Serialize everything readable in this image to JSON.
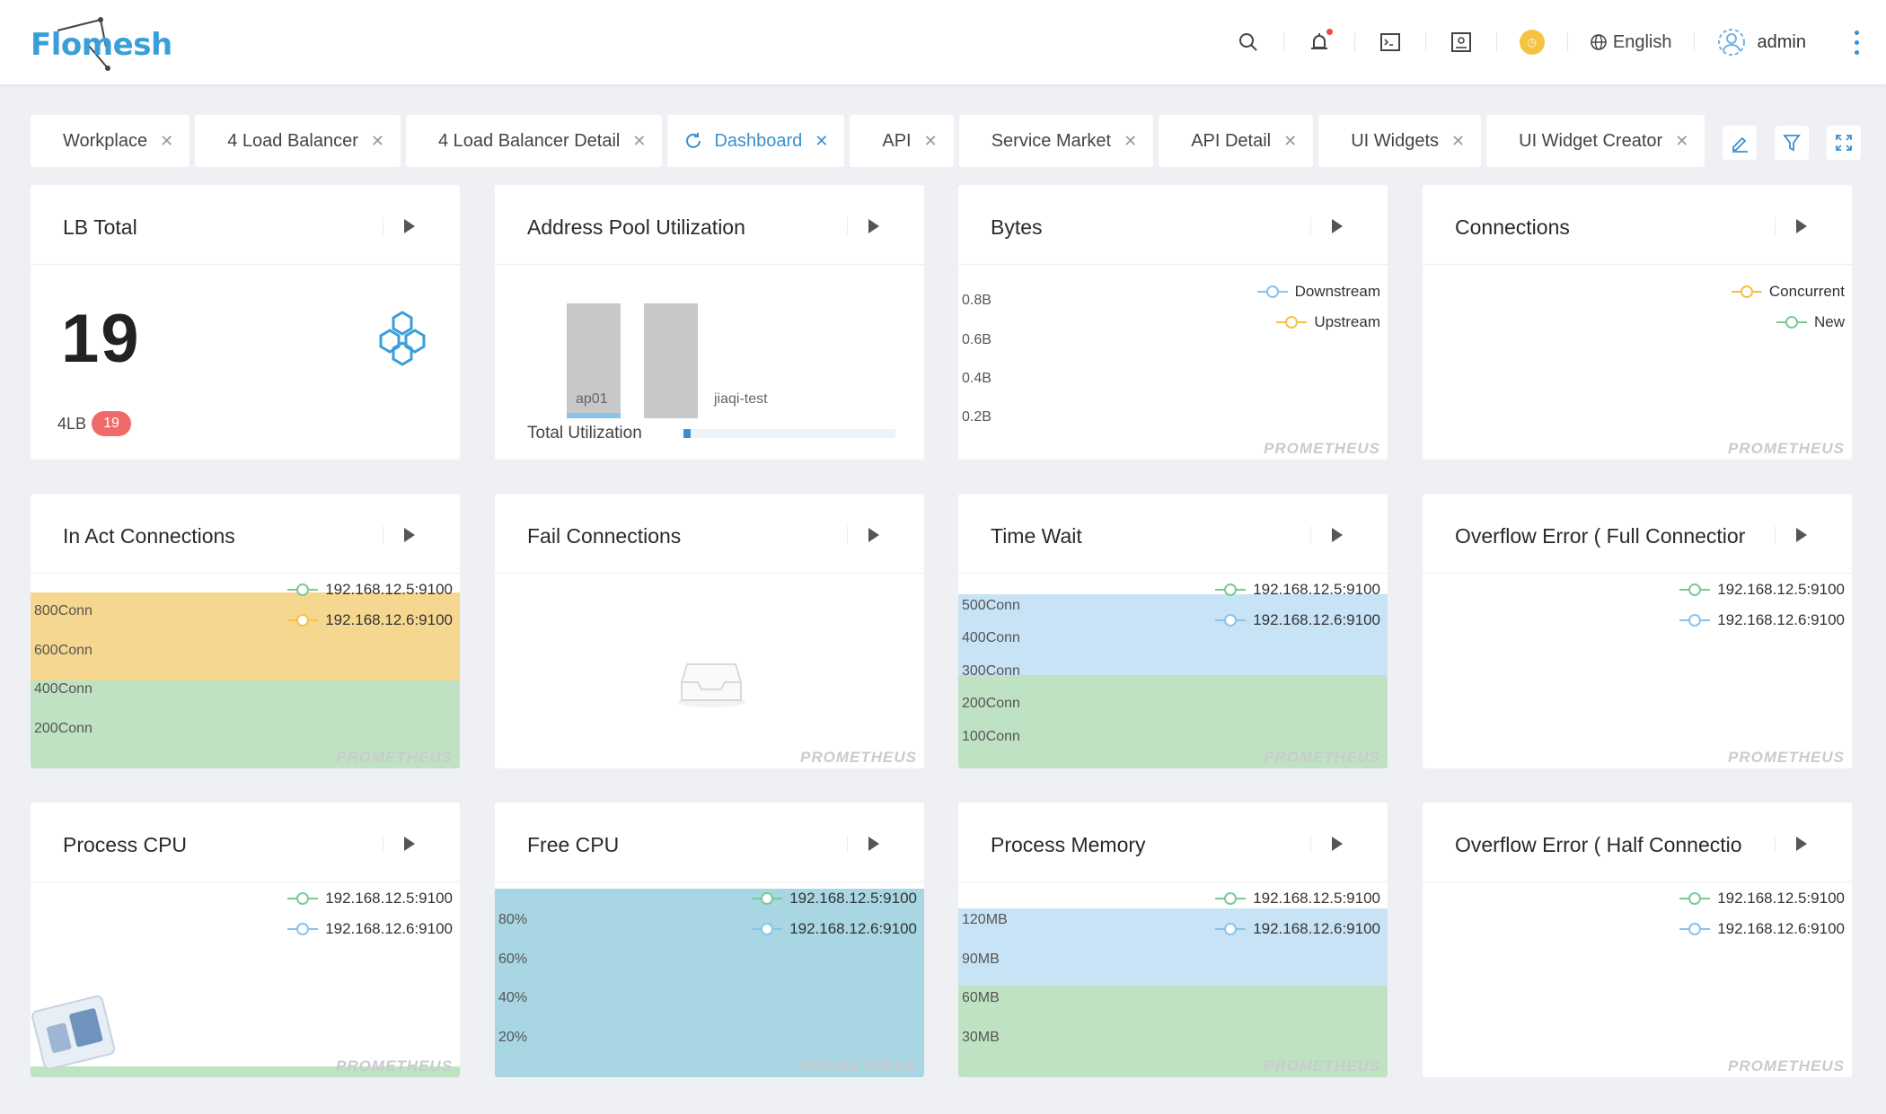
{
  "brand": {
    "name": "Flomesh"
  },
  "header": {
    "language_label": "English",
    "user_name": "admin",
    "icons": [
      "search-icon",
      "alarm-icon",
      "terminal-icon",
      "monitor-icon",
      "clock-icon",
      "globe-icon",
      "user-avatar-icon",
      "more-vert-icon"
    ],
    "accent": "#3a8fd0"
  },
  "tabs": [
    {
      "label": "Workplace"
    },
    {
      "label": "4 Load Balancer"
    },
    {
      "label": "4 Load Balancer Detail"
    },
    {
      "label": "Dashboard",
      "active": true
    },
    {
      "label": "API"
    },
    {
      "label": "Service Market"
    },
    {
      "label": "API Detail"
    },
    {
      "label": "UI Widgets"
    },
    {
      "label": "UI Widget Creator"
    }
  ],
  "cards": {
    "lb_total": {
      "title": "LB Total",
      "value": "19",
      "sub_label": "4LB",
      "badge": "19"
    },
    "address_pool": {
      "title": "Address Pool Utilization",
      "bars": [
        {
          "label": "ap01"
        },
        {
          "label": "jiaqi-test"
        }
      ],
      "footer_label": "Total Utilization"
    },
    "bytes": {
      "title": "Bytes",
      "legend": [
        "Downstream",
        "Upstream"
      ],
      "yticks": [
        "0.8B",
        "0.6B",
        "0.4B",
        "0.2B"
      ],
      "source": "PROMETHEUS"
    },
    "connections": {
      "title": "Connections",
      "legend": [
        "Concurrent",
        "New"
      ],
      "source": "PROMETHEUS"
    },
    "in_act": {
      "title": "In Act Connections",
      "legend": [
        "192.168.12.5:9100",
        "192.168.12.6:9100"
      ],
      "yticks": [
        "800Conn",
        "600Conn",
        "400Conn",
        "200Conn"
      ],
      "source": "PROMETHEUS"
    },
    "fail_conn": {
      "title": "Fail Connections",
      "source": "PROMETHEUS"
    },
    "time_wait": {
      "title": "Time Wait",
      "legend": [
        "192.168.12.5:9100",
        "192.168.12.6:9100"
      ],
      "yticks": [
        "500Conn",
        "400Conn",
        "300Conn",
        "200Conn",
        "100Conn"
      ],
      "source": "PROMETHEUS"
    },
    "overflow_full": {
      "title": "Overflow Error ( Full Connectior",
      "legend": [
        "192.168.12.5:9100",
        "192.168.12.6:9100"
      ],
      "source": "PROMETHEUS"
    },
    "process_cpu": {
      "title": "Process CPU",
      "legend": [
        "192.168.12.5:9100",
        "192.168.12.6:9100"
      ],
      "source": "PROMETHEUS"
    },
    "free_cpu": {
      "title": "Free CPU",
      "legend": [
        "192.168.12.5:9100",
        "192.168.12.6:9100"
      ],
      "yticks": [
        "80%",
        "60%",
        "40%",
        "20%"
      ],
      "source": "PROMETHEUS"
    },
    "process_memory": {
      "title": "Process Memory",
      "legend": [
        "192.168.12.5:9100",
        "192.168.12.6:9100"
      ],
      "yticks": [
        "120MB",
        "90MB",
        "60MB",
        "30MB"
      ],
      "source": "PROMETHEUS"
    },
    "overflow_half": {
      "title": "Overflow Error ( Half Connectio",
      "legend": [
        "192.168.12.5:9100",
        "192.168.12.6:9100"
      ],
      "source": "PROMETHEUS"
    }
  },
  "colors": {
    "green": "#7cc995",
    "yellow": "#f5c242",
    "blue": "#8ac3ec",
    "area_green": "#bfe3c2",
    "area_yellow": "#f6d78f",
    "area_blue": "#c8e3f6",
    "area_teal": "#a8d6e3",
    "badge_red": "#f06a6a"
  }
}
